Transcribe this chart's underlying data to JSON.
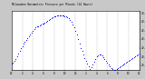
{
  "title": "Milwaukee Barometric Pressure per Minute (24 Hours)",
  "background_color": "#c8c8c8",
  "plot_bg_color": "#ffffff",
  "dot_color": "#0000ff",
  "legend_bg_color": "#0000cc",
  "grid_color": "#999999",
  "ylim": [
    29.35,
    30.02
  ],
  "xlim": [
    0,
    1440
  ],
  "yticks": [
    29.4,
    29.5,
    29.6,
    29.7,
    29.8,
    29.9,
    30.0
  ],
  "ytick_labels": [
    "29.4",
    "29.5",
    "29.6",
    "29.7",
    "29.8",
    "29.9",
    "30.0"
  ],
  "xtick_positions": [
    0,
    120,
    240,
    360,
    480,
    600,
    720,
    840,
    960,
    1080,
    1200,
    1320,
    1440
  ],
  "xtick_labels": [
    "12",
    "2",
    "4",
    "6",
    "8",
    "10",
    "12",
    "2",
    "4",
    "6",
    "8",
    "10",
    "12"
  ],
  "vgrid_positions": [
    0,
    120,
    240,
    360,
    480,
    600,
    720,
    840,
    960,
    1080,
    1200,
    1320,
    1440
  ],
  "data_x": [
    0,
    15,
    30,
    45,
    60,
    75,
    90,
    105,
    120,
    135,
    150,
    165,
    180,
    195,
    210,
    225,
    240,
    255,
    270,
    285,
    300,
    315,
    330,
    345,
    360,
    375,
    390,
    405,
    420,
    435,
    450,
    465,
    480,
    495,
    510,
    525,
    540,
    555,
    570,
    585,
    600,
    615,
    630,
    645,
    660,
    675,
    690,
    705,
    720,
    735,
    750,
    765,
    780,
    795,
    810,
    825,
    840,
    855,
    870,
    885,
    900,
    915,
    930,
    945,
    960,
    975,
    990,
    1005,
    1020,
    1035,
    1050,
    1065,
    1080,
    1095,
    1110,
    1125,
    1140,
    1155,
    1170,
    1185,
    1200,
    1215,
    1230,
    1245,
    1260,
    1275,
    1290,
    1305,
    1320,
    1335,
    1350,
    1365,
    1380,
    1395,
    1410,
    1425,
    1440
  ],
  "data_y": [
    29.42,
    29.43,
    29.45,
    29.47,
    29.5,
    29.53,
    29.56,
    29.59,
    29.62,
    29.65,
    29.67,
    29.69,
    29.71,
    29.73,
    29.75,
    29.77,
    29.79,
    29.81,
    29.83,
    29.84,
    29.85,
    29.86,
    29.87,
    29.88,
    29.88,
    29.89,
    29.9,
    29.91,
    29.92,
    29.93,
    29.94,
    29.95,
    29.96,
    29.96,
    29.97,
    29.97,
    29.97,
    29.97,
    29.97,
    29.97,
    29.96,
    29.96,
    29.95,
    29.94,
    29.92,
    29.9,
    29.87,
    29.83,
    29.79,
    29.75,
    29.7,
    29.65,
    29.6,
    29.56,
    29.52,
    29.48,
    29.45,
    29.42,
    29.39,
    29.36,
    29.38,
    29.41,
    29.44,
    29.47,
    29.5,
    29.51,
    29.52,
    29.52,
    29.51,
    29.49,
    29.47,
    29.45,
    29.43,
    29.41,
    29.39,
    29.37,
    29.36,
    29.35,
    29.35,
    29.36,
    29.37,
    29.38,
    29.39,
    29.4,
    29.41,
    29.42,
    29.43,
    29.44,
    29.45,
    29.46,
    29.47,
    29.48,
    29.49,
    29.5,
    29.51,
    29.52,
    29.53
  ]
}
